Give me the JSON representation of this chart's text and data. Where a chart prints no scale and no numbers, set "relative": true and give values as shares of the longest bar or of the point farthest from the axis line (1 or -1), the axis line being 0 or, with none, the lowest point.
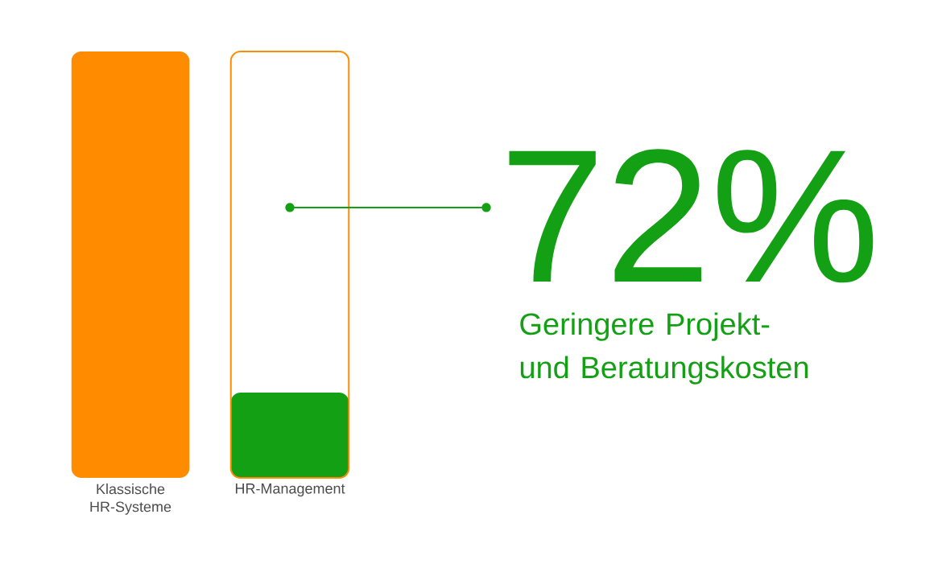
{
  "chart_data": {
    "type": "bar",
    "relative": true,
    "categories": [
      "Klassische HR-Systeme",
      "HR-Management"
    ],
    "values": [
      1,
      0.2
    ],
    "colors": [
      "#ff8c00",
      "#14a014"
    ],
    "annotations": [
      "72%",
      "Geringere Projekt- und Beratungskosten"
    ]
  }
}
